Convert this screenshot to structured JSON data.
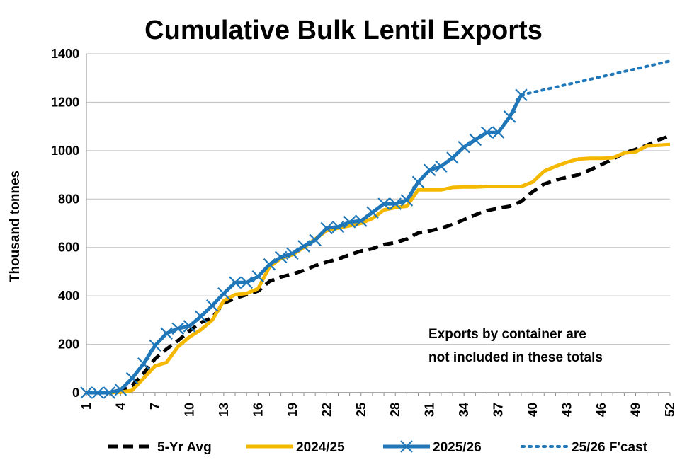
{
  "chart_data": {
    "type": "line",
    "title": "Cumulative Bulk Lentil Exports",
    "ylabel": "Thousand tonnes",
    "xlabel": "",
    "ylim": [
      0,
      1400
    ],
    "yticks": [
      0,
      200,
      400,
      600,
      800,
      1000,
      1200,
      1400
    ],
    "xlim": [
      1,
      52
    ],
    "xticks": [
      1,
      4,
      7,
      10,
      13,
      16,
      19,
      22,
      25,
      28,
      31,
      34,
      37,
      40,
      43,
      46,
      49,
      52
    ],
    "grid": "horizontal",
    "legend_position": "bottom",
    "annotation": [
      "Exports by container are",
      "not included in these totals"
    ],
    "colors": {
      "avg": "#000000",
      "prev": "#F5B800",
      "current": "#1F77B9",
      "forecast": "#1F77B9",
      "grid": "#BFBFBF"
    },
    "series": [
      {
        "name": "5-Yr Avg",
        "style": "dashed",
        "points": [
          [
            1,
            0
          ],
          [
            2,
            0
          ],
          [
            3,
            0
          ],
          [
            4,
            10
          ],
          [
            5,
            30
          ],
          [
            6,
            80
          ],
          [
            7,
            140
          ],
          [
            8,
            180
          ],
          [
            9,
            215
          ],
          [
            10,
            255
          ],
          [
            11,
            290
          ],
          [
            12,
            310
          ],
          [
            13,
            370
          ],
          [
            14,
            390
          ],
          [
            15,
            405
          ],
          [
            16,
            420
          ],
          [
            17,
            460
          ],
          [
            18,
            478
          ],
          [
            19,
            490
          ],
          [
            20,
            505
          ],
          [
            21,
            525
          ],
          [
            22,
            540
          ],
          [
            23,
            552
          ],
          [
            24,
            570
          ],
          [
            25,
            585
          ],
          [
            26,
            595
          ],
          [
            27,
            612
          ],
          [
            28,
            620
          ],
          [
            29,
            635
          ],
          [
            30,
            660
          ],
          [
            31,
            668
          ],
          [
            32,
            680
          ],
          [
            33,
            695
          ],
          [
            34,
            715
          ],
          [
            35,
            735
          ],
          [
            36,
            752
          ],
          [
            37,
            762
          ],
          [
            38,
            770
          ],
          [
            39,
            790
          ],
          [
            40,
            830
          ],
          [
            41,
            862
          ],
          [
            42,
            878
          ],
          [
            43,
            890
          ],
          [
            44,
            900
          ],
          [
            45,
            920
          ],
          [
            46,
            942
          ],
          [
            47,
            965
          ],
          [
            48,
            990
          ],
          [
            49,
            1005
          ],
          [
            50,
            1022
          ],
          [
            51,
            1045
          ],
          [
            52,
            1060
          ]
        ]
      },
      {
        "name": "2024/25",
        "style": "solid",
        "points": [
          [
            1,
            0
          ],
          [
            2,
            0
          ],
          [
            3,
            0
          ],
          [
            4,
            2
          ],
          [
            5,
            10
          ],
          [
            6,
            60
          ],
          [
            7,
            110
          ],
          [
            8,
            125
          ],
          [
            9,
            190
          ],
          [
            10,
            230
          ],
          [
            11,
            260
          ],
          [
            12,
            300
          ],
          [
            13,
            380
          ],
          [
            14,
            405
          ],
          [
            15,
            410
          ],
          [
            16,
            430
          ],
          [
            17,
            520
          ],
          [
            18,
            555
          ],
          [
            19,
            570
          ],
          [
            20,
            600
          ],
          [
            21,
            635
          ],
          [
            22,
            670
          ],
          [
            23,
            680
          ],
          [
            24,
            690
          ],
          [
            25,
            700
          ],
          [
            26,
            720
          ],
          [
            27,
            755
          ],
          [
            28,
            765
          ],
          [
            29,
            770
          ],
          [
            30,
            838
          ],
          [
            31,
            838
          ],
          [
            32,
            838
          ],
          [
            33,
            848
          ],
          [
            34,
            850
          ],
          [
            35,
            850
          ],
          [
            36,
            852
          ],
          [
            37,
            852
          ],
          [
            38,
            852
          ],
          [
            39,
            852
          ],
          [
            40,
            870
          ],
          [
            41,
            915
          ],
          [
            42,
            935
          ],
          [
            43,
            952
          ],
          [
            44,
            965
          ],
          [
            45,
            968
          ],
          [
            46,
            968
          ],
          [
            47,
            970
          ],
          [
            48,
            990
          ],
          [
            49,
            995
          ],
          [
            50,
            1020
          ],
          [
            51,
            1022
          ],
          [
            52,
            1025
          ]
        ]
      },
      {
        "name": "2025/26",
        "style": "solid-x",
        "points": [
          [
            1,
            0
          ],
          [
            2,
            0
          ],
          [
            3,
            0
          ],
          [
            4,
            12
          ],
          [
            5,
            60
          ],
          [
            6,
            120
          ],
          [
            7,
            195
          ],
          [
            8,
            245
          ],
          [
            9,
            265
          ],
          [
            10,
            275
          ],
          [
            11,
            315
          ],
          [
            12,
            360
          ],
          [
            13,
            410
          ],
          [
            14,
            455
          ],
          [
            15,
            455
          ],
          [
            16,
            480
          ],
          [
            17,
            530
          ],
          [
            18,
            560
          ],
          [
            19,
            575
          ],
          [
            20,
            605
          ],
          [
            21,
            630
          ],
          [
            22,
            680
          ],
          [
            23,
            685
          ],
          [
            24,
            705
          ],
          [
            25,
            710
          ],
          [
            26,
            745
          ],
          [
            27,
            780
          ],
          [
            28,
            780
          ],
          [
            29,
            795
          ],
          [
            30,
            870
          ],
          [
            31,
            920
          ],
          [
            32,
            935
          ],
          [
            33,
            970
          ],
          [
            34,
            1015
          ],
          [
            35,
            1045
          ],
          [
            36,
            1075
          ],
          [
            37,
            1075
          ],
          [
            38,
            1140
          ],
          [
            39,
            1230
          ]
        ]
      },
      {
        "name": "25/26 F'cast",
        "style": "dotted",
        "points": [
          [
            39,
            1230
          ],
          [
            52,
            1370
          ]
        ]
      }
    ]
  }
}
